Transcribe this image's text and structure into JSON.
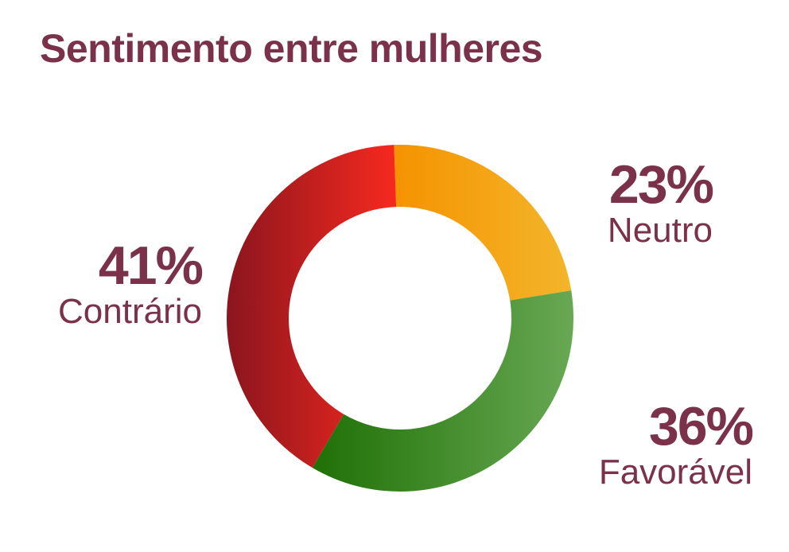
{
  "title": "Sentimento entre mulheres",
  "chart_data": {
    "type": "pie",
    "donut": true,
    "title": "Sentimento entre mulheres",
    "slices": [
      {
        "name": "Neutro",
        "value": 23,
        "label": "23%",
        "color_start": "#f59300",
        "color_end": "#f3b52a"
      },
      {
        "name": "Favorável",
        "value": 36,
        "label": "36%",
        "color_start": "#1f7006",
        "color_end": "#68a853"
      },
      {
        "name": "Contrário",
        "value": 41,
        "label": "41%",
        "color_start": "#8b151e",
        "color_end": "#f7291f"
      }
    ],
    "start_angle_deg": 90,
    "direction": "clockwise"
  }
}
